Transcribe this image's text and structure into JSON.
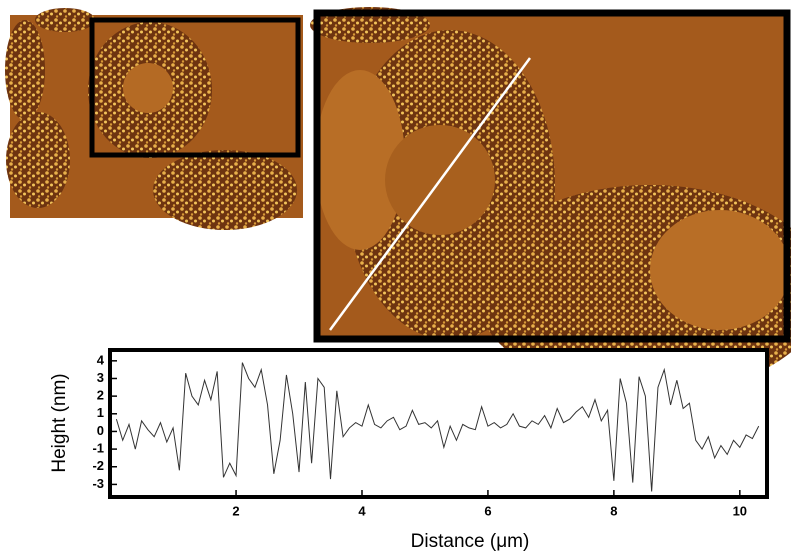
{
  "chart_data": {
    "type": "line",
    "x_label": "Distance (μm)",
    "y_label": "Height (nm)",
    "x": [
      0.1,
      0.2,
      0.3,
      0.4,
      0.5,
      0.6,
      0.7,
      0.8,
      0.9,
      1.0,
      1.1,
      1.2,
      1.3,
      1.4,
      1.5,
      1.6,
      1.7,
      1.8,
      1.9,
      2.0,
      2.1,
      2.2,
      2.3,
      2.4,
      2.5,
      2.6,
      2.7,
      2.8,
      2.9,
      3.0,
      3.1,
      3.2,
      3.3,
      3.4,
      3.5,
      3.6,
      3.7,
      3.8,
      3.9,
      4.0,
      4.1,
      4.2,
      4.3,
      4.4,
      4.5,
      4.6,
      4.7,
      4.8,
      4.9,
      5.0,
      5.1,
      5.2,
      5.3,
      5.4,
      5.5,
      5.6,
      5.7,
      5.8,
      5.9,
      6.0,
      6.1,
      6.2,
      6.3,
      6.4,
      6.5,
      6.6,
      6.7,
      6.8,
      6.9,
      7.0,
      7.1,
      7.2,
      7.3,
      7.4,
      7.5,
      7.6,
      7.7,
      7.8,
      7.9,
      8.0,
      8.1,
      8.2,
      8.3,
      8.4,
      8.5,
      8.6,
      8.7,
      8.8,
      8.9,
      9.0,
      9.1,
      9.2,
      9.3,
      9.4,
      9.5,
      9.6,
      9.7,
      9.8,
      9.9,
      10.0,
      10.1,
      10.2,
      10.3
    ],
    "series": [
      {
        "color": "#333333",
        "values": [
          0.7,
          -0.5,
          0.4,
          -1.0,
          0.6,
          0.1,
          -0.3,
          0.5,
          -0.6,
          0.2,
          -2.2,
          3.3,
          2.0,
          1.5,
          2.9,
          1.8,
          3.4,
          -2.6,
          -1.8,
          -2.5,
          3.9,
          3.0,
          2.5,
          3.5,
          1.5,
          -2.4,
          -0.5,
          3.2,
          1.0,
          -2.3,
          2.8,
          -1.8,
          3.0,
          2.5,
          -2.7,
          2.3,
          -0.3,
          0.2,
          0.5,
          0.3,
          1.5,
          0.4,
          0.2,
          0.6,
          0.8,
          0.1,
          0.3,
          1.2,
          0.4,
          0.5,
          0.2,
          0.6,
          -0.9,
          0.3,
          -0.5,
          0.4,
          0.2,
          0.1,
          1.4,
          0.3,
          0.5,
          0.2,
          0.4,
          1.0,
          0.3,
          0.2,
          0.6,
          0.4,
          0.9,
          0.2,
          1.3,
          0.5,
          0.7,
          1.1,
          1.4,
          0.8,
          1.8,
          0.6,
          1.2,
          -2.8,
          3.0,
          1.6,
          -2.9,
          3.1,
          2.0,
          -3.4,
          2.5,
          3.5,
          1.5,
          2.9,
          1.3,
          1.6,
          -0.5,
          -1.0,
          -0.3,
          -1.5,
          -0.8,
          -1.3,
          -0.5,
          -0.9,
          -0.2,
          -0.4,
          0.3
        ]
      }
    ],
    "xlim": [
      0.03,
      10.4
    ],
    "ylim": [
      -3.6,
      4.5
    ],
    "xticks": [
      2,
      4,
      6,
      8,
      10
    ],
    "yticks": [
      -3,
      -2,
      -1,
      0,
      1,
      2,
      3,
      4
    ]
  }
}
